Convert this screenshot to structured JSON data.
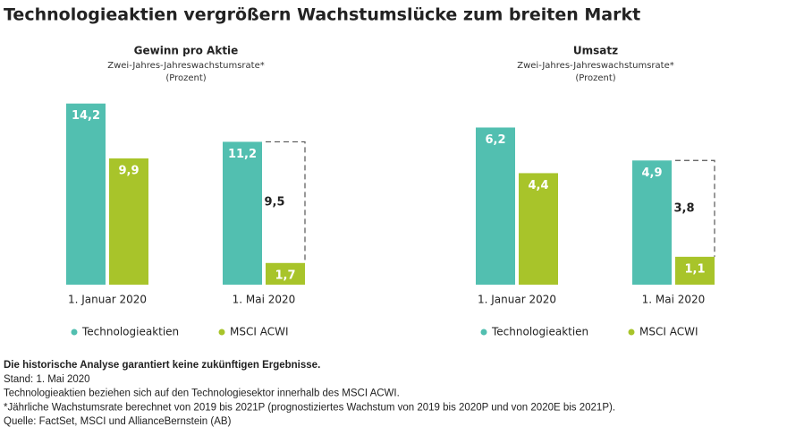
{
  "title": "Technologieaktien vergrößern Wachstumslücke zum breiten Markt",
  "chart_data": [
    {
      "type": "bar",
      "title": "Gewinn pro Aktie",
      "subtitle": [
        "Zwei-Jahres-Jahreswachstumsrate*",
        "(Prozent)"
      ],
      "categories": [
        "1. Januar 2020",
        "1. Mai 2020"
      ],
      "series": [
        {
          "name": "Technologieaktien",
          "color": "#52bfb0",
          "values": [
            14.2,
            11.2
          ],
          "value_labels": [
            "14,2",
            "11,2"
          ]
        },
        {
          "name": "MSCI ACWI",
          "color": "#a8c42a",
          "values": [
            9.9,
            1.7
          ],
          "value_labels": [
            "9,9",
            "1,7"
          ]
        }
      ],
      "gap": {
        "values": [
          null,
          9.5
        ],
        "value_labels": [
          null,
          "9,5"
        ]
      },
      "ylim": [
        0,
        15.3
      ]
    },
    {
      "type": "bar",
      "title": "Umsatz",
      "subtitle": [
        "Zwei-Jahres-Jahreswachstumsrate*",
        "(Prozent)"
      ],
      "categories": [
        "1. Januar 2020",
        "1. Mai 2020"
      ],
      "series": [
        {
          "name": "Technologieaktien",
          "color": "#52bfb0",
          "values": [
            6.2,
            4.9
          ],
          "value_labels": [
            "6,2",
            "4,9"
          ]
        },
        {
          "name": "MSCI ACWI",
          "color": "#a8c42a",
          "values": [
            4.4,
            1.1
          ],
          "value_labels": [
            "4,4",
            "1,1"
          ]
        }
      ],
      "gap": {
        "values": [
          null,
          3.8
        ],
        "value_labels": [
          null,
          "3,8"
        ]
      },
      "ylim": [
        0,
        7.7
      ]
    }
  ],
  "footer": {
    "heading": "Die historische Analyse garantiert keine zukünftigen Ergebnisse.",
    "lines": [
      "Stand: 1. Mai 2020",
      "Technologieaktien beziehen sich auf den Technologiesektor innerhalb des MSCI ACWI.",
      "*Jährliche Wachstumsrate berechnet von 2019 bis 2021P (prognostiziertes Wachstum von 2019 bis 2020P und von 2020E bis 2021P).",
      "Quelle: FactSet, MSCI und AllianceBernstein (AB)"
    ]
  }
}
